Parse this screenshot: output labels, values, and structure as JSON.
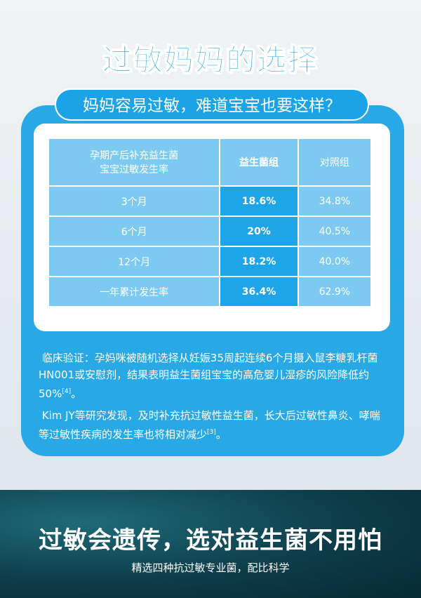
{
  "header": {
    "title": "过敏妈妈的选择",
    "subtitle": "妈妈容易过敏，难道宝宝也要这样？"
  },
  "table": {
    "header": [
      "孕期产后补充益生菌\n宝宝过敏发生率",
      "益生菌组",
      "对照组"
    ],
    "rows": [
      [
        "3个月",
        "18.6%",
        "34.8%"
      ],
      [
        "6个月",
        "20%",
        "40.5%"
      ],
      [
        "12个月",
        "18.2%",
        "40.0%"
      ],
      [
        "一年累计发生率",
        "36.4%",
        "62.9%"
      ]
    ]
  },
  "notes": [
    {
      "text": "临床验证：孕妈咪被随机选择从妊娠35周起连续6个月摄入鼠李糖乳杆菌HN001或安慰剂，结果表明益生菌组宝宝的高危婴儿湿疹的风险降低约50%",
      "ref": "[4]",
      "end": "。"
    },
    {
      "text": "Kim JY等研究发现，及时补充抗过敏性益生菌，长大后过敏性鼻炎、哮喘等过敏性疾病的发生率也将相对减少",
      "ref": "[3]",
      "end": "。"
    }
  ],
  "footer": {
    "title": "过敏会遗传，选对益生菌不用怕",
    "subtitle": "精选四种抗过敏专业菌，配比科学"
  }
}
